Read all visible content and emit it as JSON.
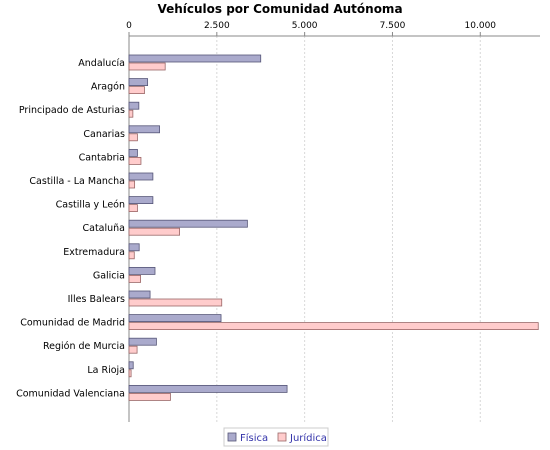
{
  "chart_data": {
    "type": "bar",
    "orientation": "horizontal",
    "title": "Vehículos por Comunidad Autónoma",
    "xlim": [
      0,
      11700
    ],
    "tick_values": [
      0,
      2500,
      5000,
      7500,
      10000
    ],
    "tick_labels": [
      "0",
      "2.500",
      "5.000",
      "7.500",
      "10.000"
    ],
    "axis_position": "top",
    "grid": true,
    "legend_position": "bottom",
    "categories": [
      "Andalucía",
      "Aragón",
      "Principado de Asturias",
      "Canarias",
      "Cantabria",
      "Castilla - La Mancha",
      "Castilla y León",
      "Cataluña",
      "Extremadura",
      "Galicia",
      "Illes Balears",
      "Comunidad de Madrid",
      "Región de Murcia",
      "La Rioja",
      "Comunidad Valenciana"
    ],
    "series": [
      {
        "name": "Física",
        "color": "#aaaacc",
        "stroke": "#555577",
        "values": [
          3750,
          530,
          280,
          870,
          240,
          680,
          680,
          3370,
          290,
          740,
          600,
          2620,
          780,
          120,
          4500
        ]
      },
      {
        "name": "Jurídica",
        "color": "#ffcccc",
        "stroke": "#996666",
        "values": [
          1030,
          440,
          110,
          240,
          340,
          160,
          240,
          1440,
          150,
          330,
          2640,
          11650,
          230,
          60,
          1180
        ]
      }
    ]
  }
}
